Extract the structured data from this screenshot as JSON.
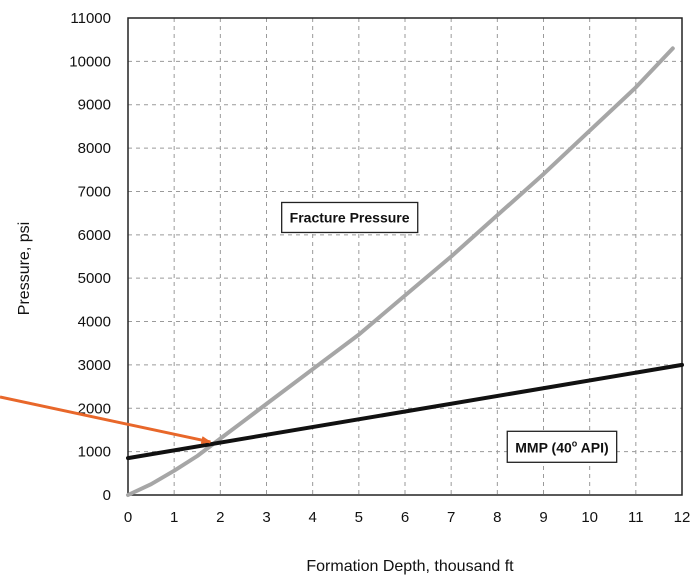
{
  "chart_data": {
    "type": "line",
    "title": "",
    "xlabel": "Formation Depth, thousand ft",
    "ylabel": "Pressure, psi",
    "xlim": [
      0,
      12
    ],
    "ylim": [
      0,
      11000
    ],
    "x_ticks": [
      "0",
      "1",
      "2",
      "3",
      "4",
      "5",
      "6",
      "7",
      "8",
      "9",
      "10",
      "11",
      "12"
    ],
    "y_ticks": [
      "0",
      "1000",
      "2000",
      "3000",
      "4000",
      "5000",
      "6000",
      "7000",
      "8000",
      "9000",
      "10000",
      "11000"
    ],
    "grid": true,
    "series": [
      {
        "name": "Fracture Pressure",
        "color": "#a6a6a6",
        "x": [
          0,
          0.5,
          1,
          1.5,
          2,
          2.5,
          3,
          4,
          5,
          6,
          7,
          8,
          9,
          10,
          11,
          11.8
        ],
        "y": [
          0,
          250,
          560,
          900,
          1300,
          1700,
          2100,
          2900,
          3700,
          4600,
          5500,
          6450,
          7400,
          8400,
          9400,
          10300
        ]
      },
      {
        "name": "MMP (40° API)",
        "color": "#111111",
        "x": [
          0,
          12
        ],
        "y": [
          850,
          3000
        ]
      }
    ],
    "annotations": [
      {
        "text_main": "Fracture Pressure",
        "x": 4.8,
        "y": 6400,
        "box": true
      },
      {
        "text_main": "MMP (40",
        "text_sup": "o",
        "text_tail": " API)",
        "x": 9.4,
        "y": 1100,
        "box": true
      },
      {
        "type": "arrow",
        "color": "#e8672a",
        "x": 1.85,
        "y": 1200
      }
    ]
  }
}
